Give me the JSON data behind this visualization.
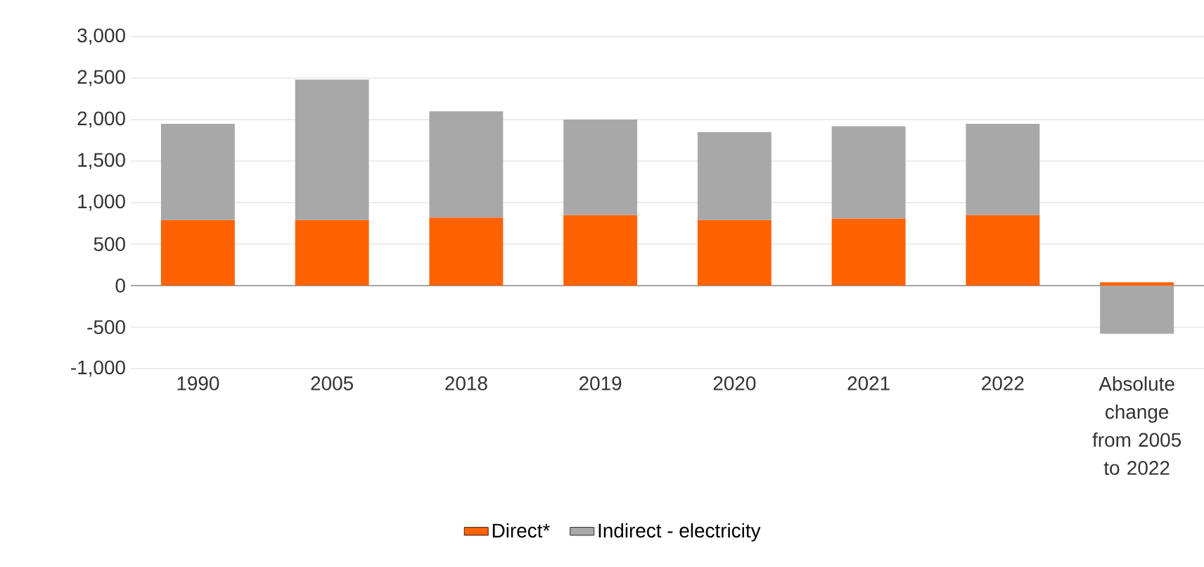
{
  "chart_data": {
    "type": "bar",
    "stacked": true,
    "categories": [
      "1990",
      "2005",
      "2018",
      "2019",
      "2020",
      "2021",
      "2022",
      "Absolute change from 2005 to 2022"
    ],
    "series": [
      {
        "name": "Direct*",
        "color": "#ff6200",
        "values": [
          790,
          790,
          820,
          850,
          790,
          810,
          850,
          40
        ]
      },
      {
        "name": "Indirect - electricity",
        "color": "#a8a8a8",
        "values": [
          1160,
          1690,
          1280,
          1150,
          1060,
          1110,
          1100,
          -580
        ]
      }
    ],
    "ylim": [
      -1000,
      3000
    ],
    "yticks": [
      {
        "value": -1000,
        "label": "-1,000"
      },
      {
        "value": -500,
        "label": "-500"
      },
      0,
      {
        "value": 500,
        "label": "500"
      },
      {
        "value": 1000,
        "label": "1,000"
      },
      {
        "value": 1500,
        "label": "1,500"
      },
      {
        "value": 2000,
        "label": "2,000"
      },
      {
        "value": 2500,
        "label": "2,500"
      },
      {
        "value": 3000,
        "label": "3,000"
      }
    ],
    "grid": "y",
    "legend": "bottom"
  }
}
